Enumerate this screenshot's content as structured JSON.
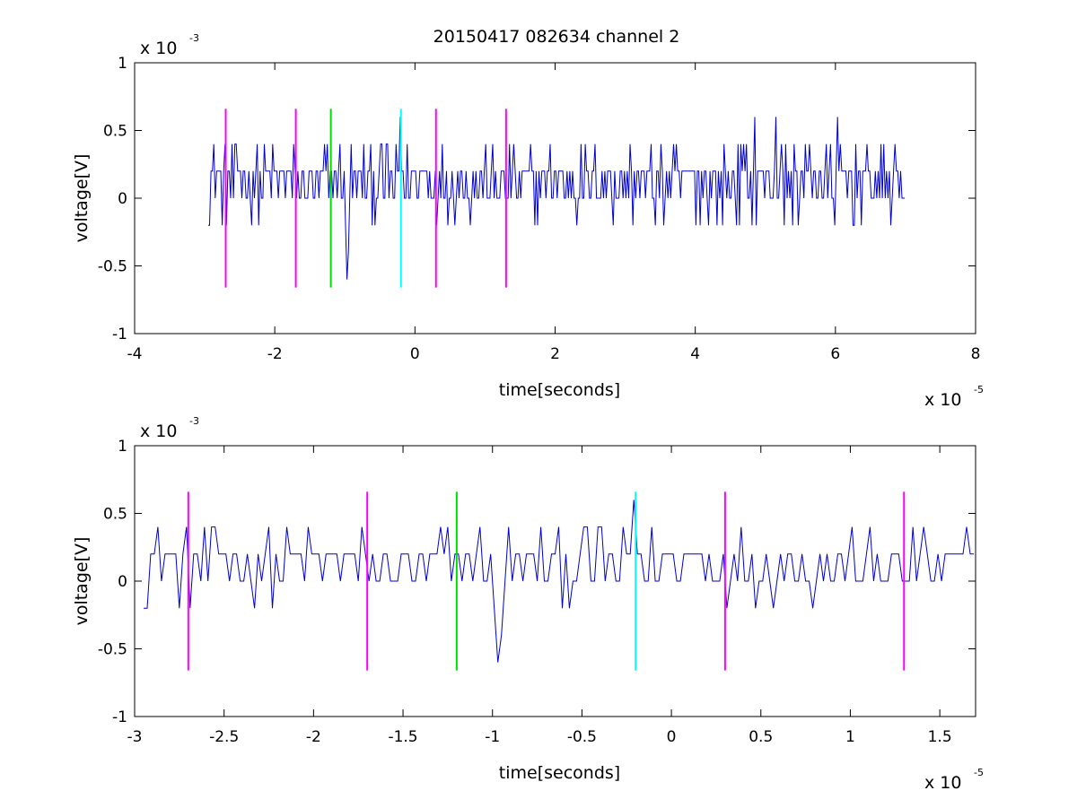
{
  "title": "20150417 082634 channel 2",
  "colors": {
    "trace": "#0000cc",
    "marker_magenta": "#ff00ff",
    "marker_green": "#00dd00",
    "marker_cyan": "#00ffff"
  },
  "chart_data": [
    {
      "type": "line",
      "title": "20150417 082634 channel 2",
      "xlabel": "time[seconds]",
      "ylabel": "voltage[V]",
      "x_multiplier": {
        "base": "x 10",
        "exp": "-5"
      },
      "y_multiplier": {
        "base": "x 10",
        "exp": "-3"
      },
      "xlim": [
        -4,
        8
      ],
      "ylim": [
        -1,
        1
      ],
      "xticks": [
        -4,
        -2,
        0,
        2,
        4,
        6,
        8
      ],
      "xtick_labels": [
        "-4",
        "-2",
        "0",
        "2",
        "4",
        "6",
        "8"
      ],
      "yticks": [
        -1,
        -0.5,
        0,
        0.5,
        1
      ],
      "ytick_labels": [
        "-1",
        "-0.5",
        "0",
        "0.5",
        "1"
      ],
      "grid": false,
      "series": [
        {
          "x_range": [
            -2.95,
            7.0
          ],
          "step": 0.02,
          "levels": [
            -0.2,
            0,
            0.2,
            0.4,
            0.6
          ],
          "baseline": 0.1,
          "noise": "quantized",
          "dips": [
            {
              "x": -0.97,
              "y": -0.6
            }
          ],
          "spikes": [
            {
              "x": -0.2,
              "y": 0.6
            },
            {
              "x": 4.85,
              "y": 0.6
            },
            {
              "x": 5.15,
              "y": 0.6
            },
            {
              "x": 6.02,
              "y": 0.6
            }
          ]
        }
      ],
      "markers": [
        {
          "x": -2.7,
          "y_range": [
            -0.66,
            0.66
          ],
          "color": "magenta"
        },
        {
          "x": -1.7,
          "y_range": [
            -0.66,
            0.66
          ],
          "color": "magenta"
        },
        {
          "x": -1.2,
          "y_range": [
            -0.66,
            0.66
          ],
          "color": "green"
        },
        {
          "x": -0.2,
          "y_range": [
            -0.66,
            0.66
          ],
          "color": "cyan"
        },
        {
          "x": 0.3,
          "y_range": [
            -0.66,
            0.66
          ],
          "color": "magenta"
        },
        {
          "x": 1.3,
          "y_range": [
            -0.66,
            0.66
          ],
          "color": "magenta"
        }
      ]
    },
    {
      "type": "line",
      "title": "",
      "xlabel": "time[seconds]",
      "ylabel": "voltage[V]",
      "x_multiplier": {
        "base": "x 10",
        "exp": "-5"
      },
      "y_multiplier": {
        "base": "x 10",
        "exp": "-3"
      },
      "xlim": [
        -3.0,
        1.7
      ],
      "ylim": [
        -1,
        1
      ],
      "xticks": [
        -3,
        -2.5,
        -2,
        -1.5,
        -1,
        -0.5,
        0,
        0.5,
        1,
        1.5
      ],
      "xtick_labels": [
        "-3",
        "-2.5",
        "-2",
        "-1.5",
        "-1",
        "-0.5",
        "0",
        "0.5",
        "1",
        "1.5"
      ],
      "yticks": [
        -1,
        -0.5,
        0,
        0.5,
        1
      ],
      "ytick_labels": [
        "-1",
        "-0.5",
        "0",
        "0.5",
        "1"
      ],
      "grid": false,
      "series": [
        {
          "x_range": [
            -2.95,
            1.7
          ],
          "step": 0.02,
          "levels": [
            -0.2,
            0,
            0.2,
            0.4,
            0.6
          ],
          "baseline": 0.1,
          "noise": "quantized",
          "dips": [
            {
              "x": -0.97,
              "y": -0.6
            }
          ],
          "spikes": [
            {
              "x": -0.2,
              "y": 0.6
            }
          ]
        }
      ],
      "markers": [
        {
          "x": -2.7,
          "y_range": [
            -0.66,
            0.66
          ],
          "color": "magenta"
        },
        {
          "x": -1.7,
          "y_range": [
            -0.66,
            0.66
          ],
          "color": "magenta"
        },
        {
          "x": -1.2,
          "y_range": [
            -0.66,
            0.66
          ],
          "color": "green"
        },
        {
          "x": -0.2,
          "y_range": [
            -0.66,
            0.66
          ],
          "color": "cyan"
        },
        {
          "x": 0.3,
          "y_range": [
            -0.66,
            0.66
          ],
          "color": "magenta"
        },
        {
          "x": 1.3,
          "y_range": [
            -0.66,
            0.66
          ],
          "color": "magenta"
        }
      ]
    }
  ]
}
